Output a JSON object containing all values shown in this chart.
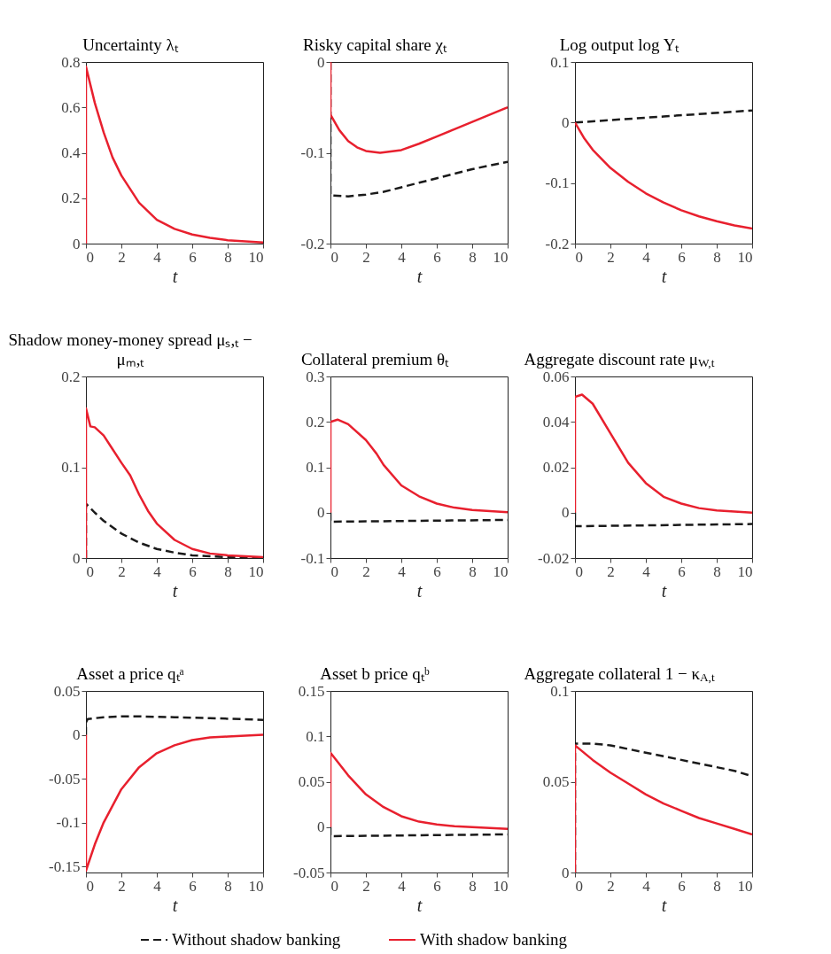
{
  "chart_data": [
    {
      "type": "line",
      "title": "Uncertainty λₜ",
      "xlabel": "t",
      "xlim": [
        0,
        10
      ],
      "xticks": [
        0,
        2,
        4,
        6,
        8,
        10
      ],
      "ylim": [
        0,
        0.8
      ],
      "yticks": [
        0,
        0.2,
        0.4,
        0.6,
        0.8
      ],
      "series": [
        {
          "color": "#e8202e",
          "line_style": "solid",
          "x": [
            0,
            0,
            0.5,
            1,
            1.5,
            2,
            3,
            4,
            5,
            6,
            7,
            8,
            9,
            10
          ],
          "values": [
            0,
            0.78,
            0.62,
            0.49,
            0.38,
            0.3,
            0.18,
            0.105,
            0.065,
            0.04,
            0.025,
            0.015,
            0.01,
            0.005
          ]
        }
      ]
    },
    {
      "type": "line",
      "title": "Risky capital share χₜ",
      "xlabel": "t",
      "xlim": [
        0,
        10
      ],
      "xticks": [
        0,
        2,
        4,
        6,
        8,
        10
      ],
      "ylim": [
        -0.2,
        0
      ],
      "yticks": [
        -0.2,
        -0.1,
        0
      ],
      "series": [
        {
          "color": "#1a1a1a",
          "line_style": "dashed",
          "x": [
            0,
            0,
            1,
            2,
            3,
            4,
            5,
            6,
            7,
            8,
            9,
            10
          ],
          "values": [
            0,
            -0.147,
            -0.148,
            -0.146,
            -0.143,
            -0.138,
            -0.133,
            -0.128,
            -0.123,
            -0.118,
            -0.114,
            -0.11
          ]
        },
        {
          "color": "#e8202e",
          "line_style": "solid",
          "x": [
            0,
            0,
            0.5,
            1,
            1.5,
            2,
            2.8,
            4,
            5,
            6,
            7,
            8,
            9,
            10
          ],
          "values": [
            0,
            -0.058,
            -0.075,
            -0.087,
            -0.094,
            -0.098,
            -0.1,
            -0.097,
            -0.09,
            -0.082,
            -0.074,
            -0.066,
            -0.058,
            -0.05
          ]
        }
      ]
    },
    {
      "type": "line",
      "title": "Log output log Yₜ",
      "xlabel": "t",
      "xlim": [
        0,
        10
      ],
      "xticks": [
        0,
        2,
        4,
        6,
        8,
        10
      ],
      "ylim": [
        -0.2,
        0.1
      ],
      "yticks": [
        -0.2,
        -0.1,
        0,
        0.1
      ],
      "series": [
        {
          "color": "#1a1a1a",
          "line_style": "dashed",
          "x": [
            0,
            5,
            10
          ],
          "values": [
            0,
            0.01,
            0.02
          ]
        },
        {
          "color": "#e8202e",
          "line_style": "solid",
          "x": [
            0,
            0.5,
            1,
            2,
            3,
            4,
            5,
            6,
            7,
            8,
            9,
            10
          ],
          "values": [
            0,
            -0.025,
            -0.045,
            -0.075,
            -0.098,
            -0.117,
            -0.132,
            -0.145,
            -0.155,
            -0.163,
            -0.17,
            -0.175
          ]
        }
      ]
    },
    {
      "type": "line",
      "title": "Shadow money-money spread μₛ,ₜ − μₘ,ₜ",
      "xlabel": "t",
      "xlim": [
        0,
        10
      ],
      "xticks": [
        0,
        2,
        4,
        6,
        8,
        10
      ],
      "ylim": [
        0,
        0.2
      ],
      "yticks": [
        0,
        0.1,
        0.2
      ],
      "series": [
        {
          "color": "#1a1a1a",
          "line_style": "dashed",
          "x": [
            0,
            0,
            0.5,
            1,
            2,
            3,
            4,
            5,
            6,
            8,
            10
          ],
          "values": [
            0,
            0.06,
            0.05,
            0.041,
            0.027,
            0.017,
            0.01,
            0.006,
            0.003,
            0.001,
            0
          ]
        },
        {
          "color": "#e8202e",
          "line_style": "solid",
          "x": [
            0,
            0,
            0.25,
            0.5,
            1,
            1.5,
            2,
            2.5,
            3,
            3.5,
            4,
            5,
            6,
            7,
            8,
            10
          ],
          "values": [
            0,
            0.165,
            0.145,
            0.144,
            0.135,
            0.12,
            0.105,
            0.091,
            0.07,
            0.052,
            0.038,
            0.02,
            0.01,
            0.005,
            0.003,
            0.001
          ]
        }
      ]
    },
    {
      "type": "line",
      "title": "Collateral premium θₜ",
      "xlabel": "t",
      "xlim": [
        0,
        10
      ],
      "xticks": [
        0,
        2,
        4,
        6,
        8,
        10
      ],
      "ylim": [
        -0.1,
        0.3
      ],
      "yticks": [
        -0.1,
        0,
        0.1,
        0.2,
        0.3
      ],
      "series": [
        {
          "color": "#1a1a1a",
          "line_style": "dashed",
          "x": [
            0,
            0,
            10
          ],
          "values": [
            0,
            -0.02,
            -0.016
          ]
        },
        {
          "color": "#e8202e",
          "line_style": "solid",
          "x": [
            0,
            0,
            0.4,
            1,
            2,
            2.6,
            3,
            4,
            5,
            6,
            7,
            8,
            10
          ],
          "values": [
            0,
            0.2,
            0.205,
            0.195,
            0.16,
            0.13,
            0.105,
            0.06,
            0.036,
            0.02,
            0.011,
            0.006,
            0.001
          ]
        }
      ]
    },
    {
      "type": "line",
      "title": "Aggregate discount rate μ$_{W,t}$",
      "xlabel": "t",
      "xlim": [
        0,
        10
      ],
      "xticks": [
        0,
        2,
        4,
        6,
        8,
        10
      ],
      "ylim": [
        -0.02,
        0.06
      ],
      "yticks": [
        -0.02,
        0,
        0.02,
        0.04,
        0.06
      ],
      "series": [
        {
          "color": "#1a1a1a",
          "line_style": "dashed",
          "x": [
            0,
            0,
            10
          ],
          "values": [
            0,
            -0.006,
            -0.005
          ]
        },
        {
          "color": "#e8202e",
          "line_style": "solid",
          "x": [
            0,
            0,
            0.4,
            1,
            2,
            3,
            4,
            5,
            6,
            7,
            8,
            10
          ],
          "values": [
            0,
            0.051,
            0.052,
            0.048,
            0.035,
            0.022,
            0.013,
            0.007,
            0.004,
            0.002,
            0.001,
            0
          ]
        }
      ]
    },
    {
      "type": "line",
      "title": "Asset a price qₜᵃ",
      "xlabel": "t",
      "xlim": [
        0,
        10
      ],
      "xticks": [
        0,
        2,
        4,
        6,
        8,
        10
      ],
      "ylim": [
        -0.157,
        0.05
      ],
      "yticks": [
        -0.15,
        -0.1,
        -0.05,
        0,
        0.05
      ],
      "series": [
        {
          "color": "#1a1a1a",
          "line_style": "dashed",
          "x": [
            0,
            0,
            0.1,
            1,
            2,
            3,
            5,
            7,
            10
          ],
          "values": [
            0,
            0.014,
            0.018,
            0.02,
            0.021,
            0.021,
            0.02,
            0.019,
            0.017
          ]
        },
        {
          "color": "#e8202e",
          "line_style": "solid",
          "x": [
            0,
            0,
            0.5,
            1,
            2,
            3,
            4,
            5,
            6,
            7,
            8,
            10
          ],
          "values": [
            0,
            -0.155,
            -0.125,
            -0.1,
            -0.062,
            -0.037,
            -0.021,
            -0.012,
            -0.006,
            -0.003,
            -0.002,
            0
          ]
        }
      ]
    },
    {
      "type": "line",
      "title": "Asset b price qₜᵇ",
      "xlabel": "t",
      "xlim": [
        0,
        10
      ],
      "xticks": [
        0,
        2,
        4,
        6,
        8,
        10
      ],
      "ylim": [
        -0.05,
        0.15
      ],
      "yticks": [
        -0.05,
        0,
        0.05,
        0.1,
        0.15
      ],
      "legend": "bottom",
      "series": [
        {
          "name": "Without shadow banking",
          "color": "#1a1a1a",
          "line_style": "dashed",
          "x": [
            0,
            0,
            10
          ],
          "values": [
            0,
            -0.01,
            -0.008
          ]
        },
        {
          "name": "With shadow banking",
          "color": "#e8202e",
          "line_style": "solid",
          "x": [
            0,
            0,
            1,
            2,
            3,
            4,
            5,
            6,
            7,
            8,
            10
          ],
          "values": [
            0,
            0.082,
            0.057,
            0.036,
            0.022,
            0.012,
            0.006,
            0.003,
            0.001,
            0,
            -0.002
          ]
        }
      ]
    },
    {
      "type": "line",
      "title": "Aggregate collateral 1 − κ$_{A,t}$",
      "xlabel": "t",
      "xlim": [
        0,
        10
      ],
      "xticks": [
        0,
        2,
        4,
        6,
        8,
        10
      ],
      "ylim": [
        0,
        0.1
      ],
      "yticks": [
        0,
        0.05,
        0.1
      ],
      "series": [
        {
          "color": "#1a1a1a",
          "line_style": "dashed",
          "x": [
            0,
            0,
            1,
            2,
            3,
            4,
            5,
            6,
            7,
            8,
            9,
            10
          ],
          "values": [
            0,
            0.071,
            0.071,
            0.07,
            0.068,
            0.066,
            0.064,
            0.062,
            0.06,
            0.058,
            0.056,
            0.053
          ]
        },
        {
          "color": "#e8202e",
          "line_style": "solid",
          "x": [
            0,
            0,
            1,
            2,
            3,
            4,
            5,
            6,
            7,
            8,
            9,
            10
          ],
          "values": [
            0,
            0.07,
            0.062,
            0.055,
            0.049,
            0.043,
            0.038,
            0.034,
            0.03,
            0.027,
            0.024,
            0.021
          ]
        }
      ]
    }
  ]
}
